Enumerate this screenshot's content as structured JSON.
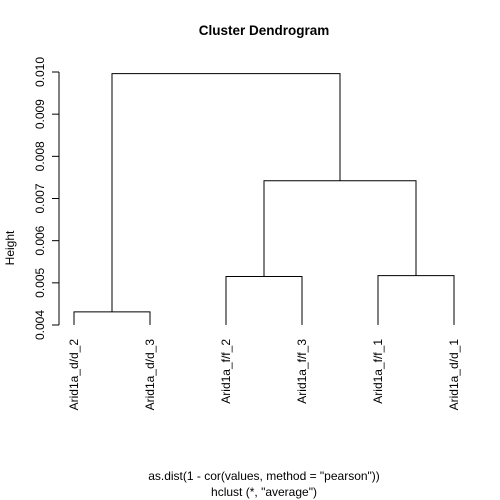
{
  "chart_data": {
    "type": "dendrogram",
    "title": "Cluster Dendrogram",
    "ylabel": "Height",
    "xlabel": "as.dist(1 - cor(values, method = \"pearson\"))",
    "sub": "hclust (*, \"average\")",
    "ylim": [
      0.004,
      0.01
    ],
    "yticks": [
      "0.004",
      "0.005",
      "0.006",
      "0.007",
      "0.008",
      "0.009",
      "0.010"
    ],
    "leaves": [
      "Arid1a_d/d_2",
      "Arid1a_d/d_3",
      "Arid1a_f/f_2",
      "Arid1a_f/f_3",
      "Arid1a_f/f_1",
      "Arid1a_d/d_1"
    ],
    "merges": [
      {
        "left": "Arid1a_d/d_2",
        "right": "Arid1a_d/d_3",
        "height": 0.00431
      },
      {
        "left": "Arid1a_f/f_2",
        "right": "Arid1a_f/f_3",
        "height": 0.00515
      },
      {
        "left": "Arid1a_f/f_1",
        "right": "Arid1a_d/d_1",
        "height": 0.00517
      },
      {
        "left": 1,
        "right": 2,
        "height": 0.00742
      },
      {
        "left": 0,
        "right": 3,
        "height": 0.00996
      }
    ]
  }
}
